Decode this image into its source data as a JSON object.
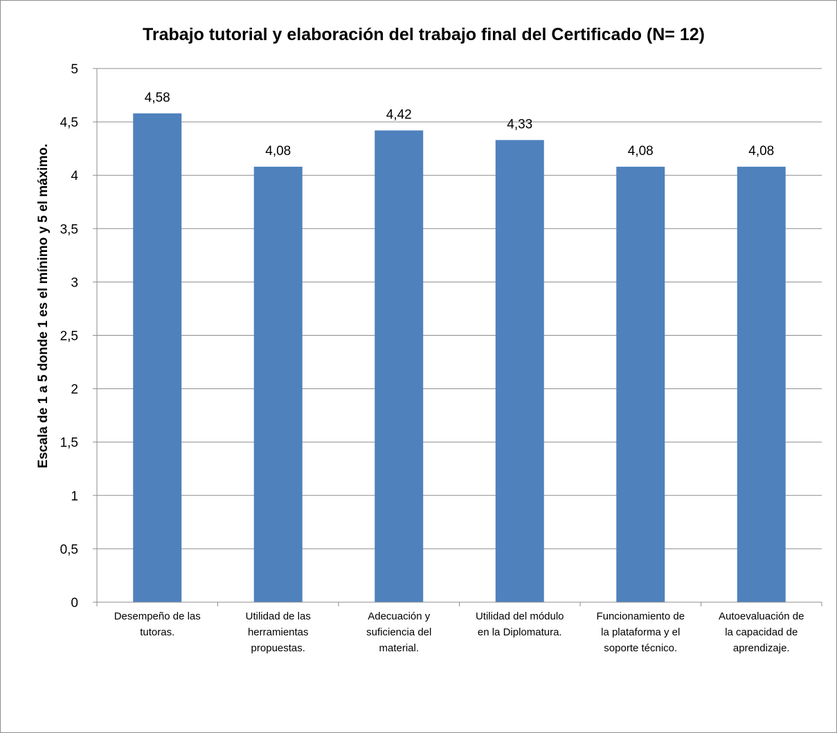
{
  "chart_data": {
    "type": "bar",
    "title": "Trabajo tutorial y elaboración del trabajo final del Certificado (N= 12)",
    "ylabel": "Escala  de 1 a 5 donde 1 es el mínimo y 5 el máximo.",
    "xlabel": "",
    "ylim": [
      0,
      5
    ],
    "ytick_step": 0.5,
    "ytick_labels": [
      "0",
      "0,5",
      "1",
      "1,5",
      "2",
      "2,5",
      "3",
      "3,5",
      "4",
      "4,5",
      "5"
    ],
    "grid": true,
    "legend": "none",
    "bar_color": "#4f81bd",
    "categories": [
      [
        "Desempeño de las",
        "tutoras."
      ],
      [
        "Utilidad de las",
        "herramientas",
        "propuestas."
      ],
      [
        "Adecuación y",
        "suficiencia del",
        "material."
      ],
      [
        "Utilidad del módulo",
        "en la Diplomatura."
      ],
      [
        "Funcionamiento de",
        "la plataforma y el",
        "soporte técnico."
      ],
      [
        "Autoevaluación de",
        "la capacidad de",
        "aprendizaje."
      ]
    ],
    "values": [
      4.58,
      4.08,
      4.42,
      4.33,
      4.08,
      4.08
    ],
    "data_labels": [
      "4,58",
      "4,08",
      "4,42",
      "4,33",
      "4,08",
      "4,08"
    ]
  }
}
